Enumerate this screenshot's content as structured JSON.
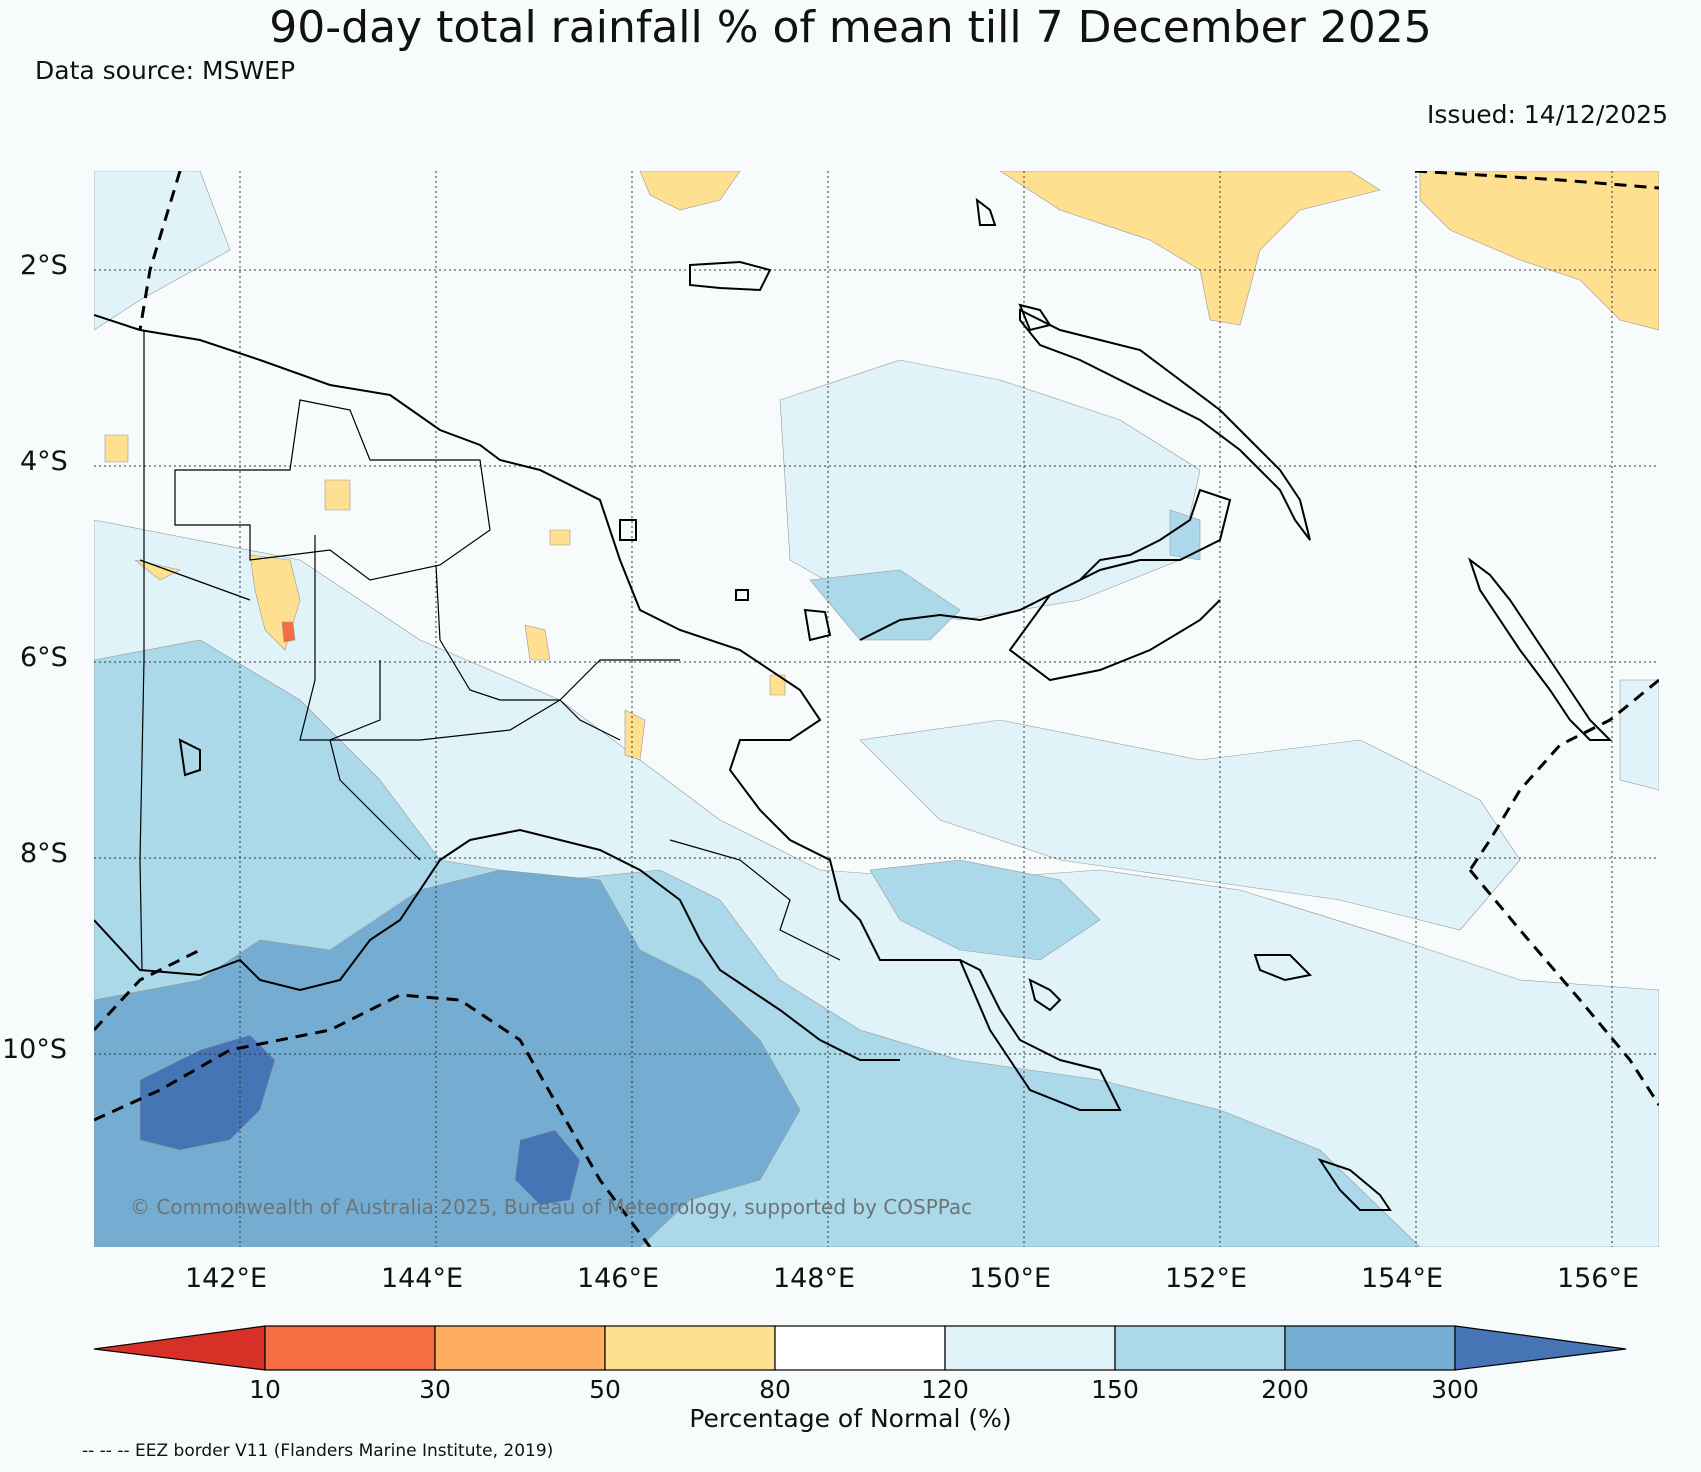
{
  "title": "90-day total rainfall % of mean till 7 December 2025",
  "data_source": "Data source: MSWEP",
  "issued": "Issued: 14/12/2025",
  "copyright": "© Commonwealth of Australia 2025, Bureau of Meteorology, supported by COSPPac",
  "lat_labels": [
    "2°S",
    "4°S",
    "6°S",
    "8°S",
    "10°S"
  ],
  "lon_labels": [
    "142°E",
    "144°E",
    "146°E",
    "148°E",
    "150°E",
    "152°E",
    "154°E",
    "156°E"
  ],
  "colorbar": {
    "title": "Percentage of Normal (%)",
    "ticks": [
      "10",
      "30",
      "50",
      "80",
      "120",
      "150",
      "200",
      "300"
    ],
    "colors": [
      "#d73027",
      "#f46d43",
      "#fdae61",
      "#fee090",
      "#ffffff",
      "#e0f3f8",
      "#abd9e9",
      "#74add1",
      "#4575b4"
    ]
  },
  "legend_note": "-- -- -- EEZ border V11 (Flanders Marine Institute, 2019)"
}
